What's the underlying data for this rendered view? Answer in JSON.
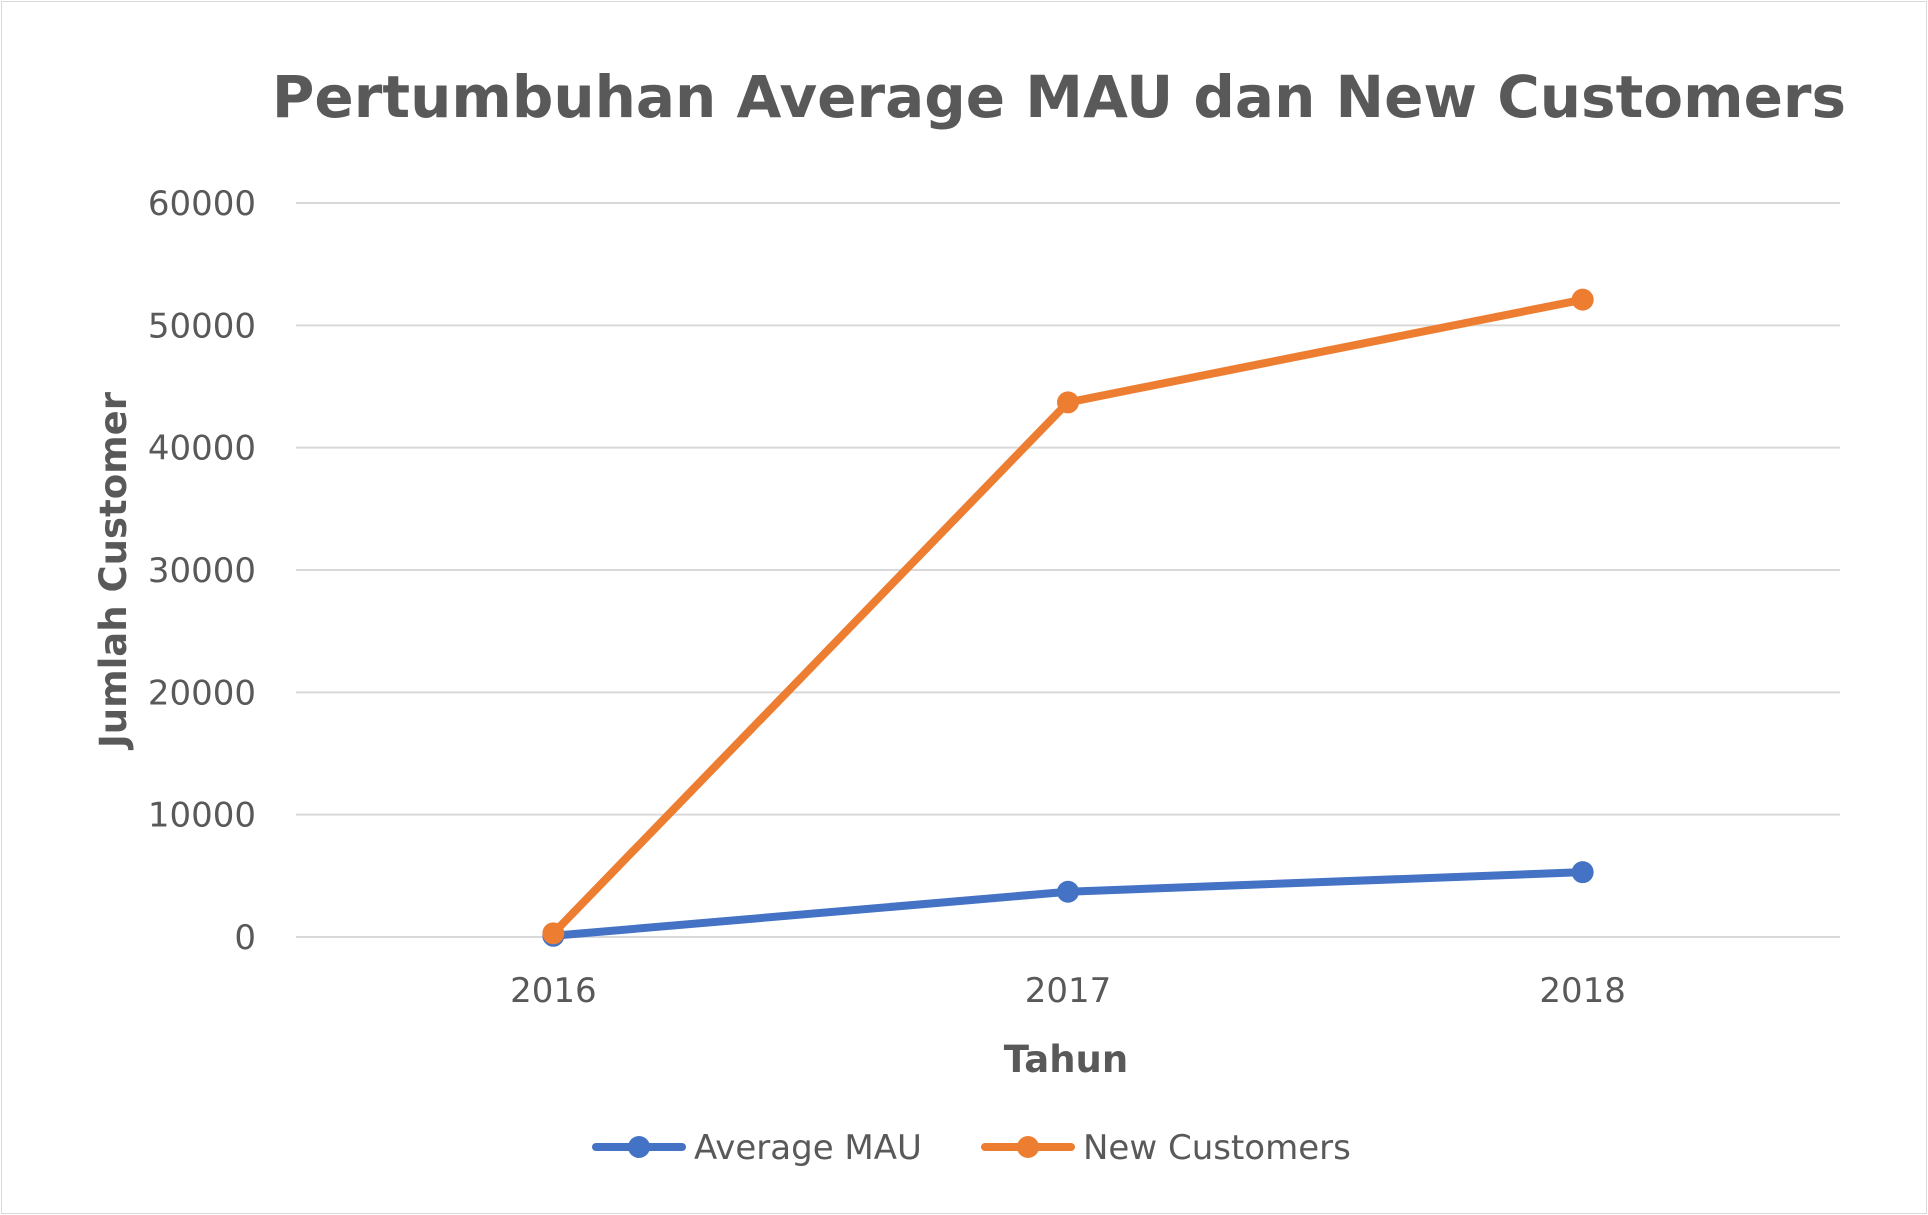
{
  "chart_data": {
    "type": "line",
    "title": "Pertumbuhan Average MAU dan New Customers",
    "xlabel": "Tahun",
    "ylabel": "Jumlah Customer",
    "categories": [
      "2016",
      "2017",
      "2018"
    ],
    "ylim": [
      0,
      60000
    ],
    "yticks": [
      0,
      10000,
      20000,
      30000,
      40000,
      50000,
      60000
    ],
    "grid": true,
    "legend_position": "bottom",
    "series": [
      {
        "name": "Average MAU",
        "color": "#4472c4",
        "values": [
          100,
          3700,
          5300
        ]
      },
      {
        "name": "New Customers",
        "color": "#ed7d31",
        "values": [
          300,
          43700,
          52100
        ]
      }
    ]
  }
}
